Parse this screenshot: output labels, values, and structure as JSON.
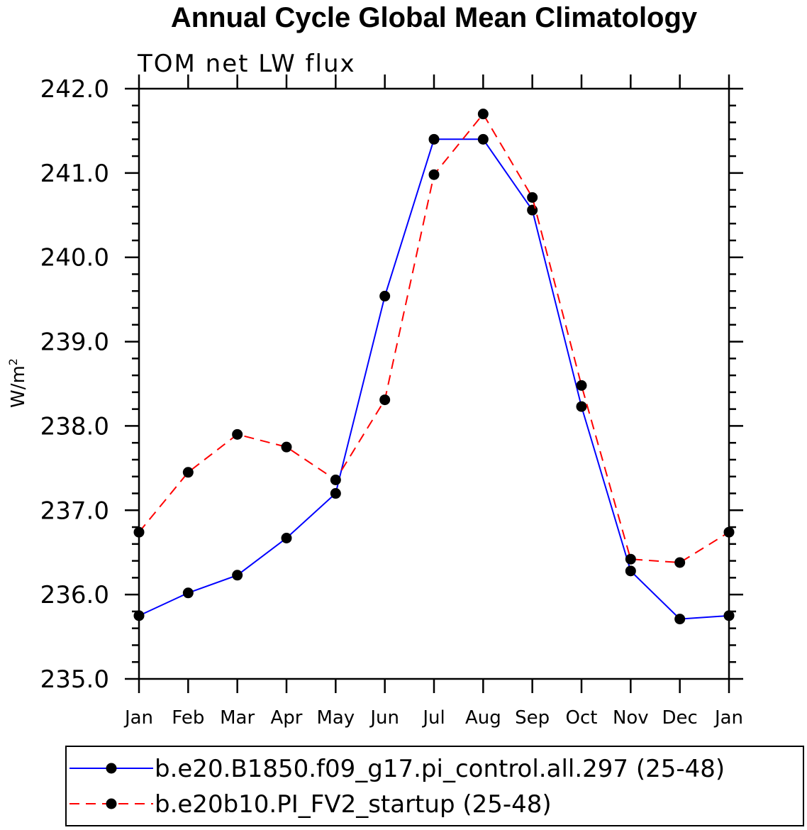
{
  "chart_data": {
    "type": "line",
    "title": "Annual Cycle Global Mean Climatology",
    "subtitle": "TOM net LW flux",
    "ylabel": "W/m",
    "ylabel_sup": "2",
    "xlabel": "",
    "ylim": [
      235.0,
      242.0
    ],
    "y_ticks": [
      "235.0",
      "236.0",
      "237.0",
      "238.0",
      "239.0",
      "240.0",
      "241.0",
      "242.0"
    ],
    "categories": [
      "Jan",
      "Feb",
      "Mar",
      "Apr",
      "May",
      "Jun",
      "Jul",
      "Aug",
      "Sep",
      "Oct",
      "Nov",
      "Dec",
      "Jan"
    ],
    "grid": false,
    "legend_position": "bottom",
    "series": [
      {
        "name": "b.e20.B1850.f09_g17.pi_control.all.297 (25-48)",
        "color": "#0000ff",
        "dash": "solid",
        "values": [
          235.75,
          236.02,
          236.23,
          236.67,
          237.2,
          239.54,
          241.4,
          241.4,
          240.56,
          238.23,
          236.28,
          235.71,
          235.75
        ]
      },
      {
        "name": "b.e20b10.PI_FV2_startup (25-48)",
        "color": "#ff0000",
        "dash": "dashed",
        "values": [
          236.74,
          237.45,
          237.9,
          237.75,
          237.36,
          238.31,
          240.98,
          241.7,
          240.71,
          238.48,
          236.42,
          236.38,
          236.74
        ]
      }
    ]
  }
}
